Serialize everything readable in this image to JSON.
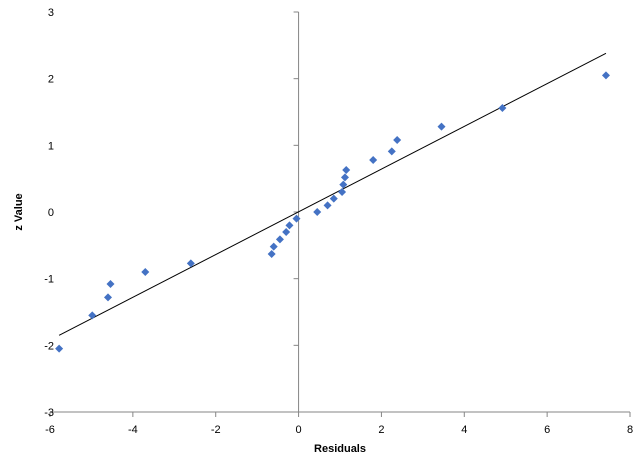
{
  "chart_data": {
    "type": "scatter",
    "title": "",
    "xlabel": "Residuals",
    "ylabel": "z Value",
    "xlim": [
      -6,
      8
    ],
    "ylim": [
      -3,
      3
    ],
    "x_ticks": [
      -6,
      -4,
      -2,
      0,
      2,
      4,
      6,
      8
    ],
    "y_ticks": [
      -3,
      -2,
      -1,
      0,
      1,
      2,
      3
    ],
    "grid": false,
    "legend": "none",
    "marker_color": "#4472C4",
    "marker": "diamond",
    "series": [
      {
        "x": [
          -5.78,
          -4.98,
          -4.6,
          -4.54,
          -3.7,
          -2.6,
          -0.65,
          -0.6,
          -0.45,
          -0.3,
          -0.22,
          -0.05,
          0.45,
          0.7,
          0.85,
          1.05,
          1.08,
          1.12,
          1.15,
          1.8,
          2.25,
          2.38,
          3.45,
          4.92,
          7.42
        ],
        "y": [
          -2.05,
          -1.55,
          -1.28,
          -1.08,
          -0.9,
          -0.77,
          -0.63,
          -0.52,
          -0.41,
          -0.3,
          -0.2,
          -0.1,
          0.0,
          0.1,
          0.2,
          0.3,
          0.41,
          0.52,
          0.63,
          0.78,
          0.91,
          1.08,
          1.28,
          1.56,
          2.05
        ]
      }
    ],
    "trendline": {
      "x": [
        -5.78,
        7.42
      ],
      "y": [
        -1.85,
        2.38
      ],
      "color": "#000000"
    }
  }
}
